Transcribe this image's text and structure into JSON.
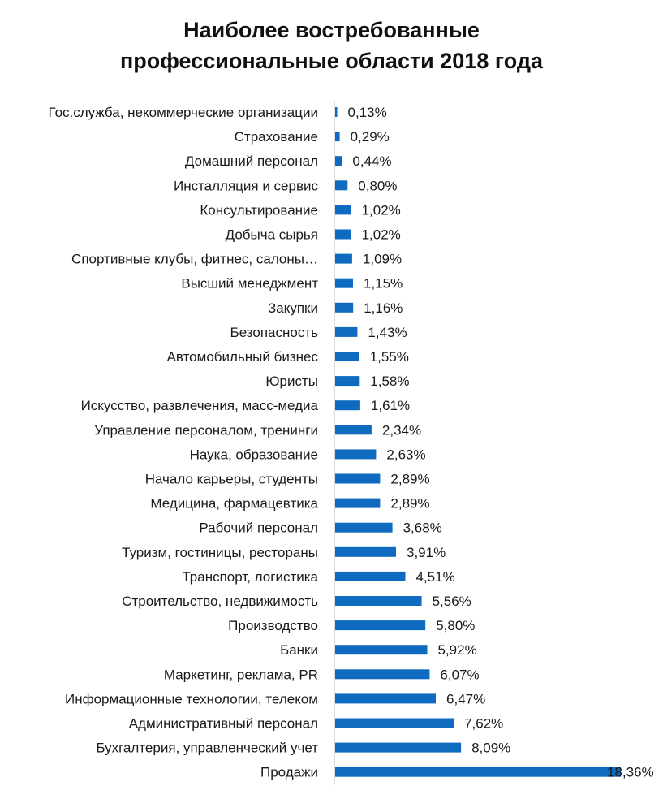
{
  "chart_data": {
    "type": "bar",
    "orientation": "horizontal",
    "title_line1": "Наиболее востребованные",
    "title_line2": "профессиональные области 2018 года",
    "bar_color": "#0e6bbf",
    "axis_color": "#b7b7b7",
    "categories": [
      "Гос.служба, некоммерческие организации",
      "Страхование",
      "Домашний персонал",
      "Инсталляция и сервис",
      "Консультирование",
      "Добыча сырья",
      "Спортивные клубы, фитнес, салоны…",
      "Высший менеджмент",
      "Закупки",
      "Безопасность",
      "Автомобильный бизнес",
      "Юристы",
      "Искусство, развлечения, масс-медиа",
      "Управление персоналом, тренинги",
      "Наука, образование",
      "Начало карьеры, студенты",
      "Медицина, фармацевтика",
      "Рабочий персонал",
      "Туризм, гостиницы, рестораны",
      "Транспорт, логистика",
      "Строительство, недвижимость",
      "Производство",
      "Банки",
      "Маркетинг, реклама, PR",
      "Информационные технологии, телеком",
      "Административный персонал",
      "Бухгалтерия, управленческий учет",
      "Продажи"
    ],
    "values": [
      0.13,
      0.29,
      0.44,
      0.8,
      1.02,
      1.02,
      1.09,
      1.15,
      1.16,
      1.43,
      1.55,
      1.58,
      1.61,
      2.34,
      2.63,
      2.89,
      2.89,
      3.68,
      3.91,
      4.51,
      5.56,
      5.8,
      5.92,
      6.07,
      6.47,
      7.62,
      8.09,
      18.36
    ],
    "value_labels": [
      "0,13%",
      "0,29%",
      "0,44%",
      "0,80%",
      "1,02%",
      "1,02%",
      "1,09%",
      "1,15%",
      "1,16%",
      "1,43%",
      "1,55%",
      "1,58%",
      "1,61%",
      "2,34%",
      "2,63%",
      "2,89%",
      "2,89%",
      "3,68%",
      "3,91%",
      "4,51%",
      "5,56%",
      "5,80%",
      "5,92%",
      "6,07%",
      "6,47%",
      "7,62%",
      "8,09%",
      "18,36%"
    ]
  }
}
